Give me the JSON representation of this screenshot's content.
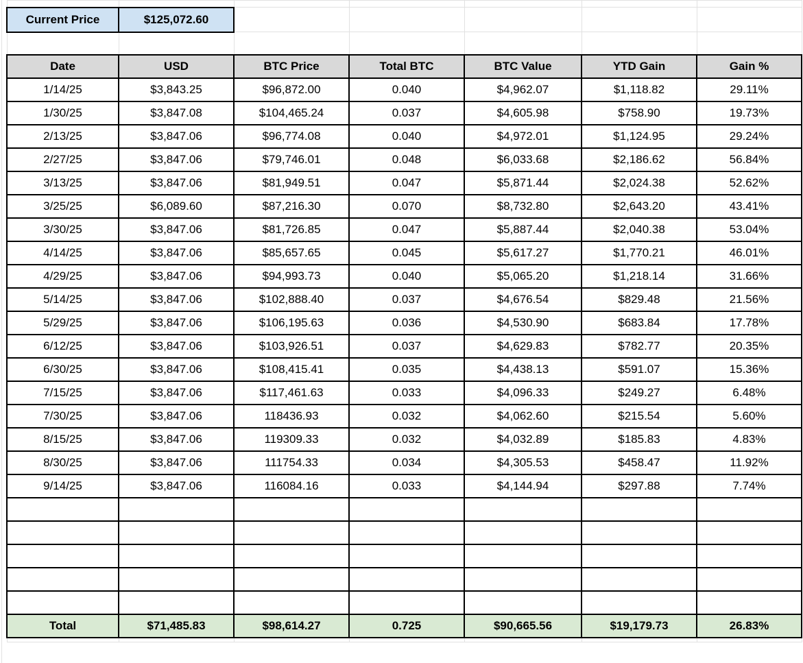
{
  "current_price": {
    "label": "Current Price",
    "value": "$125,072.60"
  },
  "table": {
    "columns": [
      "Date",
      "USD",
      "BTC Price",
      "Total BTC",
      "BTC Value",
      "YTD Gain",
      "Gain %"
    ],
    "rows": [
      [
        "1/14/25",
        "$3,843.25",
        "$96,872.00",
        "0.040",
        "$4,962.07",
        "$1,118.82",
        "29.11%"
      ],
      [
        "1/30/25",
        "$3,847.08",
        "$104,465.24",
        "0.037",
        "$4,605.98",
        "$758.90",
        "19.73%"
      ],
      [
        "2/13/25",
        "$3,847.06",
        "$96,774.08",
        "0.040",
        "$4,972.01",
        "$1,124.95",
        "29.24%"
      ],
      [
        "2/27/25",
        "$3,847.06",
        "$79,746.01",
        "0.048",
        "$6,033.68",
        "$2,186.62",
        "56.84%"
      ],
      [
        "3/13/25",
        "$3,847.06",
        "$81,949.51",
        "0.047",
        "$5,871.44",
        "$2,024.38",
        "52.62%"
      ],
      [
        "3/25/25",
        "$6,089.60",
        "$87,216.30",
        "0.070",
        "$8,732.80",
        "$2,643.20",
        "43.41%"
      ],
      [
        "3/30/25",
        "$3,847.06",
        "$81,726.85",
        "0.047",
        "$5,887.44",
        "$2,040.38",
        "53.04%"
      ],
      [
        "4/14/25",
        "$3,847.06",
        "$85,657.65",
        "0.045",
        "$5,617.27",
        "$1,770.21",
        "46.01%"
      ],
      [
        "4/29/25",
        "$3,847.06",
        "$94,993.73",
        "0.040",
        "$5,065.20",
        "$1,218.14",
        "31.66%"
      ],
      [
        "5/14/25",
        "$3,847.06",
        "$102,888.40",
        "0.037",
        "$4,676.54",
        "$829.48",
        "21.56%"
      ],
      [
        "5/29/25",
        "$3,847.06",
        "$106,195.63",
        "0.036",
        "$4,530.90",
        "$683.84",
        "17.78%"
      ],
      [
        "6/12/25",
        "$3,847.06",
        "$103,926.51",
        "0.037",
        "$4,629.83",
        "$782.77",
        "20.35%"
      ],
      [
        "6/30/25",
        "$3,847.06",
        "$108,415.41",
        "0.035",
        "$4,438.13",
        "$591.07",
        "15.36%"
      ],
      [
        "7/15/25",
        "$3,847.06",
        "$117,461.63",
        "0.033",
        "$4,096.33",
        "$249.27",
        "6.48%"
      ],
      [
        "7/30/25",
        "$3,847.06",
        "118436.93",
        "0.032",
        "$4,062.60",
        "$215.54",
        "5.60%"
      ],
      [
        "8/15/25",
        "$3,847.06",
        "119309.33",
        "0.032",
        "$4,032.89",
        "$185.83",
        "4.83%"
      ],
      [
        "8/30/25",
        "$3,847.06",
        "111754.33",
        "0.034",
        "$4,305.53",
        "$458.47",
        "11.92%"
      ],
      [
        "9/14/25",
        "$3,847.06",
        "116084.16",
        "0.033",
        "$4,144.94",
        "$297.88",
        "7.74%"
      ]
    ],
    "empty_row_count": 5,
    "total": [
      "Total",
      "$71,485.83",
      "$98,614.27",
      "0.725",
      "$90,665.56",
      "$19,179.73",
      "26.83%"
    ]
  },
  "colors": {
    "header_bg": "#d9d9d9",
    "highlight_blue": "#cfe2f3",
    "total_green": "#d9ead3",
    "grid_faint": "#e1e1e1",
    "border_strong": "#000000"
  }
}
